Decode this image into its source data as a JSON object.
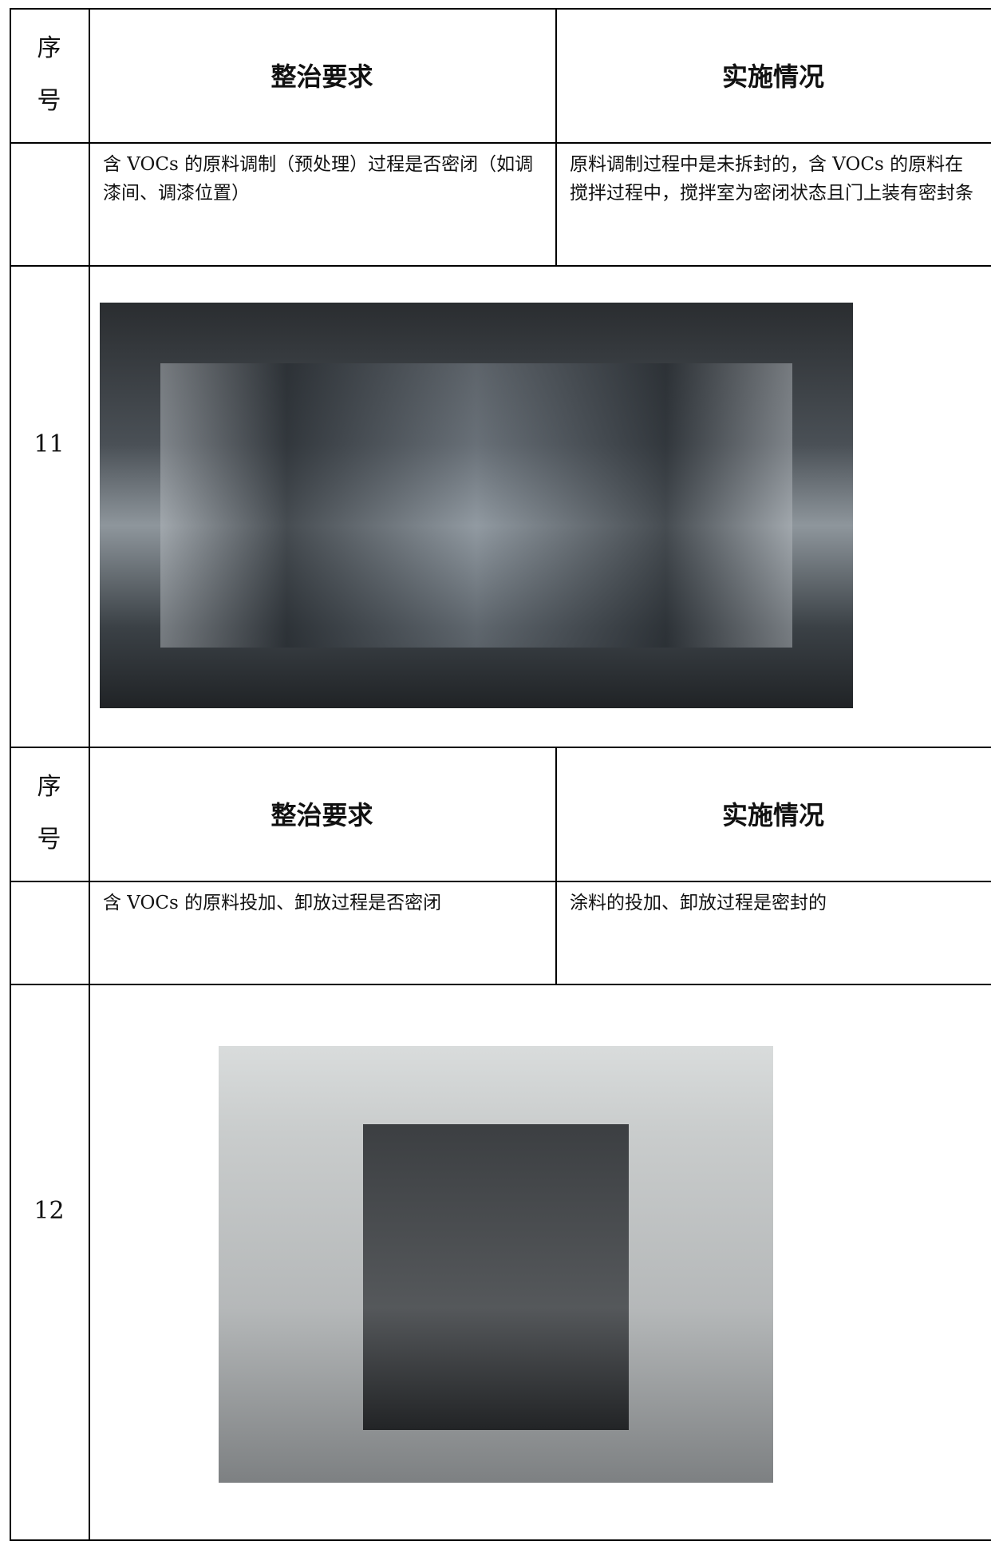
{
  "sections": [
    {
      "header": {
        "no": "序号",
        "requirement": "整治要求",
        "implementation": "实施情况"
      },
      "no": "11",
      "requirement": "含 VOCs 的原料调制（预处理）过程是否密闭（如调漆间、调漆位置）",
      "implementation": "原料调制过程中是未拆封的，含 VOCs 的原料在搅拌过程中，搅拌室为密闭状态且门上装有密封条"
    },
    {
      "header": {
        "no": "序号",
        "requirement": "整治要求",
        "implementation": "实施情况"
      },
      "no": "12",
      "requirement": "含 VOCs 的原料投加、卸放过程是否密闭",
      "implementation": "涂料的投加、卸放过程是密封的"
    }
  ]
}
